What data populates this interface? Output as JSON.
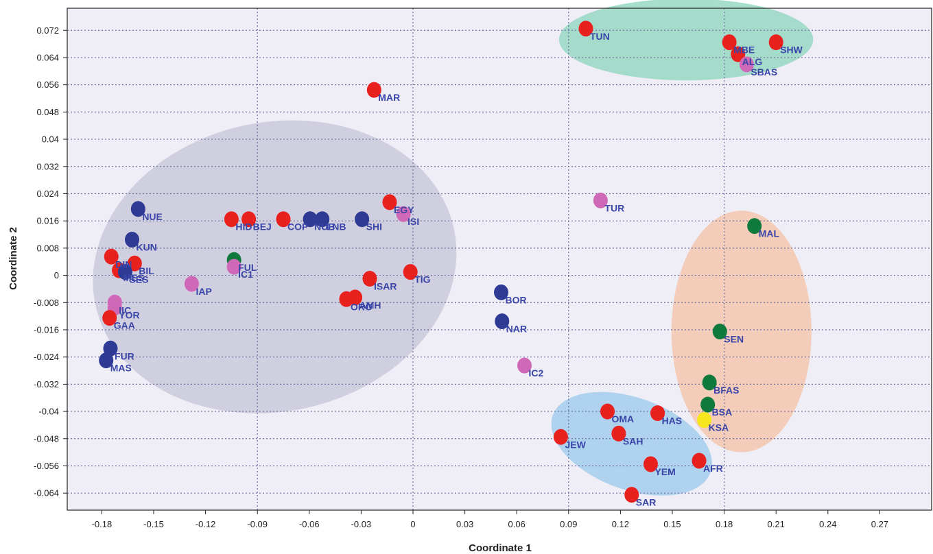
{
  "chart_data": {
    "type": "scatter",
    "title": "",
    "xlabel": "Coordinate 1",
    "ylabel": "Coordinate 2",
    "xlim": [
      -0.2,
      0.3
    ],
    "ylim": [
      -0.069,
      0.0785
    ],
    "x_ticks": [
      -0.18,
      -0.15,
      -0.12,
      -0.09,
      -0.06,
      -0.03,
      0,
      0.03,
      0.06,
      0.09,
      0.12,
      0.15,
      0.18,
      0.21,
      0.24,
      0.27
    ],
    "x_tick_labels": [
      "-0.18",
      "-0.15",
      "-0.12",
      "-0.09",
      "-0.06",
      "-0.03",
      "0",
      "0.03",
      "0.06",
      "0.09",
      "0.12",
      "0.15",
      "0.18",
      "0.21",
      "0.24",
      "0.27"
    ],
    "y_ticks": [
      0.072,
      0.064,
      0.056,
      0.048,
      0.04,
      0.032,
      0.024,
      0.016,
      0.008,
      0,
      -0.008,
      -0.016,
      -0.024,
      -0.032,
      -0.04,
      -0.048,
      -0.056,
      -0.064
    ],
    "y_tick_labels": [
      "0.072",
      "0.064",
      "0.056",
      "0.048",
      "0.04",
      "0.032",
      "0.024",
      "0.016",
      "0.008",
      "0",
      "-0.008",
      "-0.016",
      "-0.024",
      "-0.032",
      "-0.04",
      "-0.048",
      "-0.056",
      "-0.064"
    ],
    "grid": "dotted",
    "colors": {
      "plot_background": "#efeef6",
      "grid": "#6e6e9e",
      "red": "#e8211f",
      "blue": "#2e3a94",
      "green": "#0f7a3c",
      "pink": "#d068b8",
      "yellow": "#f7e51e",
      "label": "#3a45a8"
    },
    "regions": [
      {
        "color": "#c6c6d8",
        "cx": -0.08,
        "cy": 0.0025,
        "rx": 0.106,
        "ry": 0.0425,
        "rotate_deg": -12
      },
      {
        "color": "#8fd6be",
        "cx": 0.158,
        "cy": 0.0693,
        "rx": 0.0735,
        "ry": 0.012,
        "rotate_deg": 0
      },
      {
        "color": "#f3c4a8",
        "cx": 0.19,
        "cy": -0.0165,
        "rx": 0.0405,
        "ry": 0.0355,
        "rotate_deg": 0
      },
      {
        "color": "#9ccbec",
        "cx": 0.1265,
        "cy": -0.0495,
        "rx": 0.0485,
        "ry": 0.0135,
        "rotate_deg": 20
      }
    ],
    "points": [
      {
        "label": "TUN",
        "x": 0.1,
        "y": 0.0725,
        "color": "red"
      },
      {
        "label": "MBE",
        "x": 0.183,
        "y": 0.0685,
        "color": "red"
      },
      {
        "label": "SHW",
        "x": 0.21,
        "y": 0.0685,
        "color": "red"
      },
      {
        "label": "ALG",
        "x": 0.188,
        "y": 0.065,
        "color": "red"
      },
      {
        "label": "SBAS",
        "x": 0.193,
        "y": 0.062,
        "color": "pink"
      },
      {
        "label": "MAR",
        "x": -0.0225,
        "y": 0.0545,
        "color": "red"
      },
      {
        "label": "TUR",
        "x": 0.1085,
        "y": 0.022,
        "color": "pink"
      },
      {
        "label": "EGY",
        "x": -0.0135,
        "y": 0.0215,
        "color": "red"
      },
      {
        "label": "ISI",
        "x": -0.0055,
        "y": 0.018,
        "color": "pink"
      },
      {
        "label": "NUE",
        "x": -0.159,
        "y": 0.0195,
        "color": "blue"
      },
      {
        "label": "HID",
        "x": -0.105,
        "y": 0.0165,
        "color": "red"
      },
      {
        "label": "BEJ",
        "x": -0.095,
        "y": 0.0165,
        "color": "red"
      },
      {
        "label": "COP",
        "x": -0.075,
        "y": 0.0165,
        "color": "red"
      },
      {
        "label": "NUB",
        "x": -0.0595,
        "y": 0.0165,
        "color": "blue"
      },
      {
        "label": "LNB",
        "x": -0.0525,
        "y": 0.0165,
        "color": "blue"
      },
      {
        "label": "SHI",
        "x": -0.0295,
        "y": 0.0165,
        "color": "blue"
      },
      {
        "label": "MAL",
        "x": 0.1975,
        "y": 0.0145,
        "color": "green"
      },
      {
        "label": "KUN",
        "x": -0.1625,
        "y": 0.0105,
        "color": "blue"
      },
      {
        "label": "DIN",
        "x": -0.1745,
        "y": 0.0055,
        "color": "red"
      },
      {
        "label": "FUL",
        "x": -0.1035,
        "y": 0.0045,
        "color": "green"
      },
      {
        "label": "BIL",
        "x": -0.161,
        "y": 0.0035,
        "color": "red"
      },
      {
        "label": "IC1",
        "x": -0.1035,
        "y": 0.0025,
        "color": "pink"
      },
      {
        "label": "MES",
        "x": -0.17,
        "y": 0.0015,
        "color": "red"
      },
      {
        "label": "SES",
        "x": -0.1665,
        "y": 0.001,
        "color": "blue"
      },
      {
        "label": "TIG",
        "x": -0.0015,
        "y": 0.001,
        "color": "red"
      },
      {
        "label": "ISAR",
        "x": -0.025,
        "y": -0.001,
        "color": "red"
      },
      {
        "label": "IAP",
        "x": -0.128,
        "y": -0.0025,
        "color": "pink"
      },
      {
        "label": "BOR",
        "x": 0.051,
        "y": -0.005,
        "color": "blue"
      },
      {
        "label": "AMH",
        "x": -0.0335,
        "y": -0.0065,
        "color": "red"
      },
      {
        "label": "ORO",
        "x": -0.0385,
        "y": -0.007,
        "color": "red"
      },
      {
        "label": "IIC",
        "x": -0.1725,
        "y": -0.008,
        "color": "pink"
      },
      {
        "label": "YOR",
        "x": -0.1725,
        "y": -0.0095,
        "color": "pink"
      },
      {
        "label": "GAA",
        "x": -0.1755,
        "y": -0.0125,
        "color": "red"
      },
      {
        "label": "NAR",
        "x": 0.0515,
        "y": -0.0135,
        "color": "blue"
      },
      {
        "label": "SEN",
        "x": 0.1775,
        "y": -0.0165,
        "color": "green"
      },
      {
        "label": "FUR",
        "x": -0.175,
        "y": -0.0215,
        "color": "blue"
      },
      {
        "label": "MAS",
        "x": -0.1775,
        "y": -0.025,
        "color": "blue"
      },
      {
        "label": "IC2",
        "x": 0.0645,
        "y": -0.0265,
        "color": "pink"
      },
      {
        "label": "BFAS",
        "x": 0.1715,
        "y": -0.0315,
        "color": "green"
      },
      {
        "label": "BSA",
        "x": 0.1705,
        "y": -0.038,
        "color": "green"
      },
      {
        "label": "OMA",
        "x": 0.1125,
        "y": -0.04,
        "color": "red"
      },
      {
        "label": "HAS",
        "x": 0.1415,
        "y": -0.0405,
        "color": "red"
      },
      {
        "label": "KSA",
        "x": 0.1685,
        "y": -0.0425,
        "color": "yellow"
      },
      {
        "label": "SAH",
        "x": 0.119,
        "y": -0.0465,
        "color": "red"
      },
      {
        "label": "JEW",
        "x": 0.0855,
        "y": -0.0475,
        "color": "red"
      },
      {
        "label": "AFR",
        "x": 0.1655,
        "y": -0.0545,
        "color": "red"
      },
      {
        "label": "YEM",
        "x": 0.1375,
        "y": -0.0555,
        "color": "red"
      },
      {
        "label": "SAR",
        "x": 0.1265,
        "y": -0.0645,
        "color": "red"
      }
    ]
  }
}
